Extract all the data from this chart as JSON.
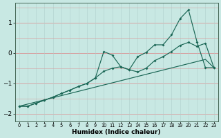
{
  "xlabel": "Humidex (Indice chaleur)",
  "background_color": "#c8e8e3",
  "grid_color_major": "#e8b8b8",
  "grid_color_minor": "#b8d8d4",
  "line_color": "#1a6655",
  "x": [
    0,
    1,
    2,
    3,
    4,
    5,
    6,
    7,
    8,
    9,
    10,
    11,
    12,
    13,
    14,
    15,
    16,
    17,
    18,
    19,
    20,
    21,
    22,
    23
  ],
  "line_straight": [
    -1.75,
    -1.68,
    -1.61,
    -1.54,
    -1.47,
    -1.4,
    -1.33,
    -1.26,
    -1.19,
    -1.12,
    -1.05,
    -0.98,
    -0.91,
    -0.84,
    -0.77,
    -0.7,
    -0.63,
    -0.56,
    -0.49,
    -0.42,
    -0.35,
    -0.28,
    -0.21,
    -0.48
  ],
  "line_mid": [
    -1.75,
    -1.75,
    -1.65,
    -1.55,
    -1.45,
    -1.33,
    -1.22,
    -1.1,
    -1.0,
    -0.82,
    -0.6,
    -0.5,
    -0.45,
    -0.55,
    -0.62,
    -0.5,
    -0.25,
    -0.12,
    0.05,
    0.25,
    0.35,
    0.22,
    0.32,
    -0.48
  ],
  "line_top": [
    -1.75,
    -1.75,
    -1.65,
    -1.55,
    -1.45,
    -1.33,
    -1.22,
    -1.1,
    -1.0,
    -0.82,
    0.05,
    -0.07,
    -0.45,
    -0.55,
    -0.12,
    0.02,
    0.27,
    0.27,
    0.6,
    1.13,
    1.42,
    0.37,
    -0.48,
    -0.48
  ],
  "ylim": [
    -2.25,
    1.65
  ],
  "xlim": [
    -0.5,
    23.5
  ],
  "yticks": [
    -2,
    -1,
    0,
    1
  ],
  "xticks": [
    0,
    1,
    2,
    3,
    4,
    5,
    6,
    7,
    8,
    9,
    10,
    11,
    12,
    13,
    14,
    15,
    16,
    17,
    18,
    19,
    20,
    21,
    22,
    23
  ]
}
